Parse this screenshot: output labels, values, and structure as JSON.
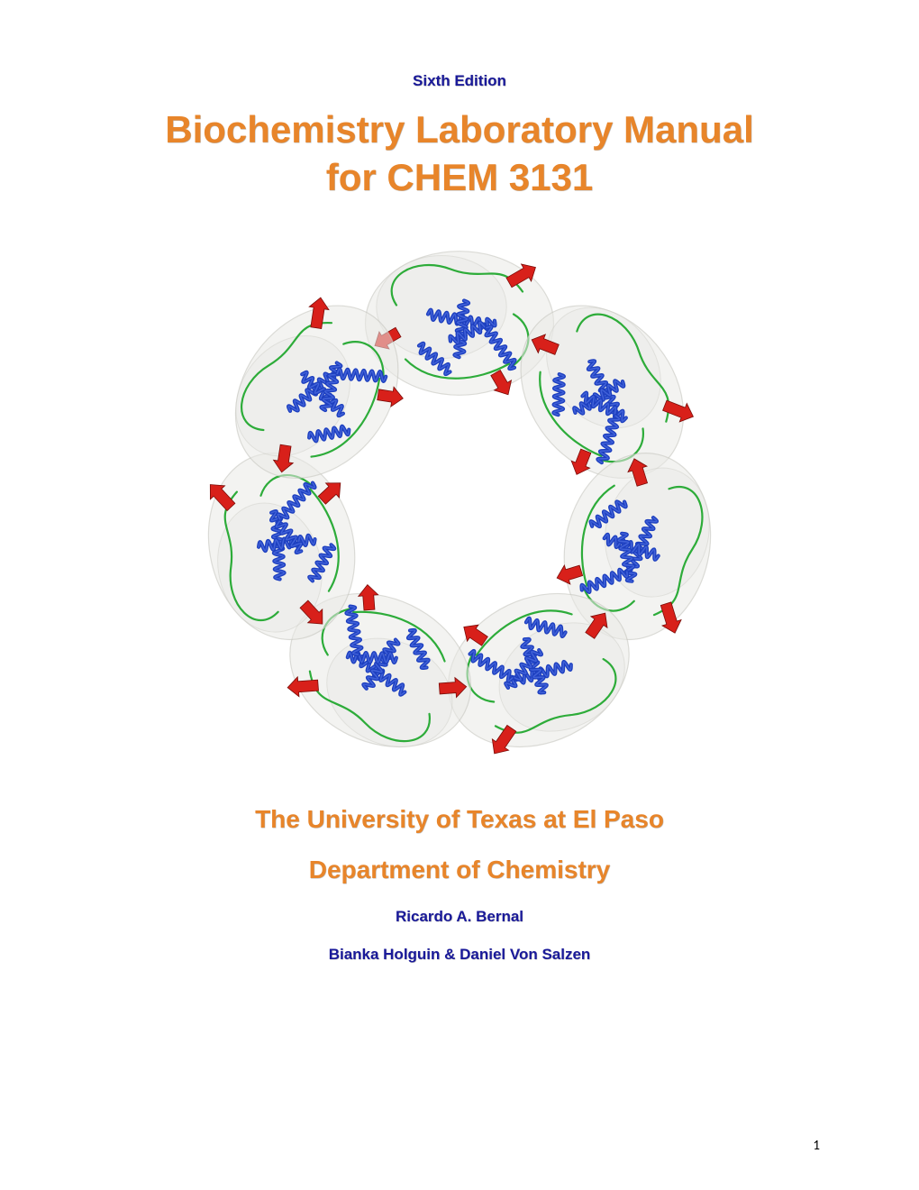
{
  "edition": "Sixth Edition",
  "title_line1": "Biochemistry Laboratory Manual",
  "title_line2": "for CHEM 3131",
  "figure": {
    "type": "protein-ring-illustration",
    "description": "Ring of seven protein subunits (heptamer). Each subunit shows blue alpha-helix coils, red beta-strand arrows, green connecting loops, all inside a semi-transparent grey surface blob. Arranged in a circle with a white void in the center.",
    "subunit_count": 7,
    "colors": {
      "helix": "#1d3fbf",
      "helix_highlight": "#4a6adf",
      "sheet_arrow": "#d8201a",
      "loop": "#22a82f",
      "surface_fill": "#e9e9e6",
      "surface_edge": "#c7c7c0",
      "background": "#ffffff"
    },
    "ring_outer_radius": 300,
    "ring_inner_radius": 105,
    "subunit_size": 190
  },
  "subtitle1": "The University of Texas at El Paso",
  "subtitle2": "Department of Chemistry",
  "author1": "Ricardo A. Bernal",
  "author2": "Bianka Holguin & Daniel Von Salzen",
  "page_number": "1",
  "palette": {
    "orange": "#e8852a",
    "navy": "#1a1a9a",
    "text_black": "#000000",
    "page_bg": "#ffffff"
  }
}
